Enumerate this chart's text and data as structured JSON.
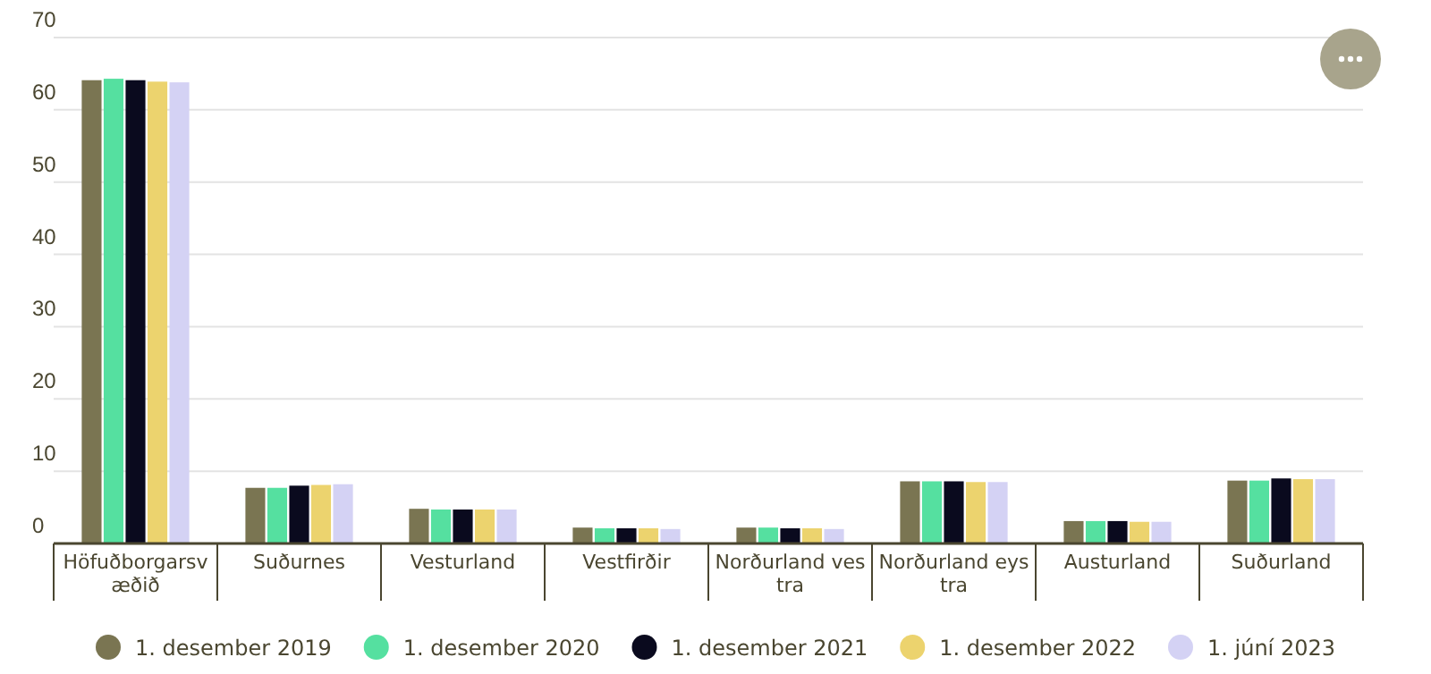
{
  "chart_data": {
    "type": "bar",
    "categories": [
      "Höfuðborgarsvæðið",
      "Suðurnes",
      "Vesturland",
      "Vestfirðir",
      "Norðurland vestra",
      "Norðurland eystra",
      "Austurland",
      "Suðurland"
    ],
    "series": [
      {
        "name": "1. desember 2019",
        "color": "#7a7552",
        "values": [
          64.1,
          7.7,
          4.8,
          2.2,
          2.2,
          8.6,
          3.1,
          8.7
        ]
      },
      {
        "name": "1. desember 2020",
        "color": "#55e0a0",
        "values": [
          64.3,
          7.7,
          4.7,
          2.1,
          2.2,
          8.6,
          3.1,
          8.7
        ]
      },
      {
        "name": "1. desember 2021",
        "color": "#0a0a1e",
        "values": [
          64.1,
          8.0,
          4.7,
          2.1,
          2.1,
          8.6,
          3.1,
          9.0
        ]
      },
      {
        "name": "1. desember 2022",
        "color": "#ecd36e",
        "values": [
          63.9,
          8.1,
          4.7,
          2.1,
          2.1,
          8.5,
          3.0,
          8.9
        ]
      },
      {
        "name": "1. júní 2023",
        "color": "#d4d2f4",
        "values": [
          63.8,
          8.2,
          4.7,
          2.0,
          2.0,
          8.5,
          3.0,
          8.9
        ]
      }
    ],
    "ylim": [
      0,
      70
    ],
    "yticks": [
      0,
      10,
      20,
      30,
      40,
      50,
      60,
      70
    ],
    "grid": "y",
    "legend": "bottom"
  }
}
